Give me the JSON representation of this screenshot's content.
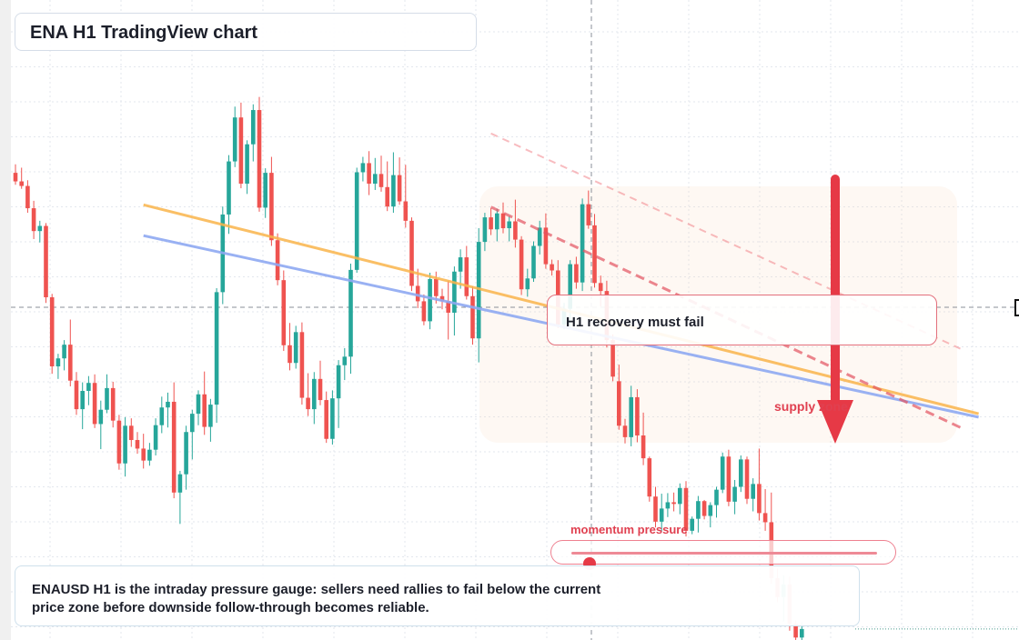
{
  "title": "ENA H1 TradingView chart",
  "callout": "H1 recovery must fail",
  "supply_label": "supply zone",
  "momentum": {
    "label": "momentum pressure",
    "level": 0.06
  },
  "caption": "ENAUSD H1 is the intraday pressure gauge: sellers need rallies to fail below the current price zone before downside follow-through becomes reliable.",
  "colors": {
    "bull": "#26a69a",
    "bear": "#ef5350",
    "orange_line": "#f9b44a",
    "blue_line": "#8ea8f2",
    "accent": "#e63946"
  },
  "chart_data": {
    "type": "candlestick",
    "title": "ENA H1 TradingView chart",
    "xlabel": "",
    "ylabel": "",
    "ylim": [
      0,
      100
    ],
    "grid": true,
    "annotations": [
      "H1 recovery must fail",
      "supply zone",
      "momentum pressure"
    ],
    "arrow": "down",
    "ohlc": [
      [
        79.6,
        81.1,
        77.5,
        78.1
      ],
      [
        78.1,
        80.5,
        76.8,
        77.3
      ],
      [
        77.3,
        78.3,
        72.6,
        73.4
      ],
      [
        73.4,
        74.7,
        68.0,
        69.4
      ],
      [
        69.4,
        71.2,
        67.4,
        70.3
      ],
      [
        70.3,
        70.8,
        56.8,
        57.8
      ],
      [
        57.8,
        58.4,
        44.4,
        45.7
      ],
      [
        45.7,
        47.9,
        43.5,
        47.1
      ],
      [
        47.1,
        50.3,
        45.0,
        49.5
      ],
      [
        49.5,
        53.9,
        42.2,
        43.2
      ],
      [
        43.2,
        44.7,
        37.2,
        38.2
      ],
      [
        38.2,
        42.9,
        34.7,
        41.4
      ],
      [
        41.4,
        44.0,
        38.9,
        42.8
      ],
      [
        42.8,
        44.3,
        34.9,
        35.6
      ],
      [
        35.6,
        39.7,
        31.2,
        38.1
      ],
      [
        38.1,
        44.3,
        37.5,
        41.9
      ],
      [
        41.9,
        43.0,
        35.0,
        36.2
      ],
      [
        36.2,
        37.2,
        27.6,
        28.7
      ],
      [
        28.7,
        36.8,
        26.4,
        35.3
      ],
      [
        35.3,
        36.6,
        31.6,
        32.8
      ],
      [
        32.8,
        34.2,
        30.4,
        31.3
      ],
      [
        31.3,
        33.9,
        27.8,
        29.2
      ],
      [
        29.2,
        32.3,
        28.3,
        31.1
      ],
      [
        31.1,
        36.6,
        30.1,
        35.4
      ],
      [
        35.4,
        40.4,
        34.0,
        38.5
      ],
      [
        38.5,
        41.1,
        35.0,
        39.5
      ],
      [
        39.5,
        42.9,
        22.6,
        23.6
      ],
      [
        23.6,
        27.4,
        18.1,
        26.8
      ],
      [
        26.8,
        35.3,
        24.1,
        34.2
      ],
      [
        34.2,
        38.1,
        29.4,
        37.4
      ],
      [
        37.4,
        41.5,
        35.4,
        40.8
      ],
      [
        40.8,
        44.8,
        33.7,
        35.1
      ],
      [
        35.1,
        40.0,
        32.5,
        39.0
      ],
      [
        39.0,
        59.4,
        35.8,
        58.7
      ],
      [
        58.7,
        73.7,
        56.6,
        72.3
      ],
      [
        72.3,
        82.7,
        68.9,
        81.6
      ],
      [
        81.6,
        91.2,
        80.6,
        89.3
      ],
      [
        89.3,
        91.9,
        76.9,
        77.7
      ],
      [
        77.7,
        85.3,
        75.9,
        84.6
      ],
      [
        84.6,
        91.6,
        81.6,
        90.6
      ],
      [
        90.6,
        92.9,
        72.8,
        73.5
      ],
      [
        73.5,
        80.4,
        71.7,
        79.6
      ],
      [
        79.6,
        82.4,
        66.8,
        67.8
      ],
      [
        67.8,
        69.0,
        59.9,
        60.8
      ],
      [
        60.8,
        62.5,
        48.4,
        49.4
      ],
      [
        49.4,
        53.3,
        45.0,
        46.3
      ],
      [
        46.3,
        52.8,
        45.3,
        51.7
      ],
      [
        51.7,
        53.4,
        39.0,
        40.2
      ],
      [
        40.2,
        44.5,
        37.0,
        38.2
      ],
      [
        38.2,
        44.7,
        35.6,
        43.5
      ],
      [
        43.5,
        46.7,
        38.9,
        39.8
      ],
      [
        39.8,
        41.3,
        32.3,
        33.0
      ],
      [
        33.0,
        41.5,
        32.0,
        40.1
      ],
      [
        40.1,
        46.8,
        34.9,
        45.9
      ],
      [
        45.9,
        48.9,
        43.3,
        47.4
      ],
      [
        47.4,
        63.7,
        44.4,
        62.6
      ],
      [
        62.6,
        80.5,
        62.1,
        79.7
      ],
      [
        79.7,
        82.4,
        78.1,
        81.3
      ],
      [
        81.3,
        83.4,
        75.7,
        77.7
      ],
      [
        77.7,
        82.2,
        76.6,
        79.4
      ],
      [
        79.4,
        82.6,
        76.3,
        77.1
      ],
      [
        77.1,
        81.6,
        72.9,
        73.7
      ],
      [
        73.7,
        83.2,
        72.6,
        79.2
      ],
      [
        79.2,
        82.3,
        74.0,
        74.6
      ],
      [
        74.6,
        81.0,
        70.0,
        71.2
      ],
      [
        71.2,
        71.8,
        58.9,
        59.8
      ],
      [
        59.8,
        62.8,
        55.9,
        57.1
      ],
      [
        57.1,
        58.3,
        52.9,
        53.6
      ],
      [
        53.6,
        62.1,
        52.2,
        61.0
      ],
      [
        61.0,
        62.3,
        56.7,
        58.0
      ],
      [
        58.0,
        59.3,
        55.7,
        57.1
      ],
      [
        57.1,
        60.7,
        50.4,
        55.1
      ],
      [
        55.1,
        63.2,
        51.1,
        62.3
      ],
      [
        62.3,
        66.2,
        59.3,
        64.8
      ],
      [
        64.8,
        66.8,
        57.4,
        58.0
      ],
      [
        58.0,
        59.7,
        49.5,
        50.6
      ],
      [
        50.6,
        69.9,
        46.4,
        67.5
      ],
      [
        67.5,
        72.6,
        65.9,
        71.8
      ],
      [
        71.8,
        73.4,
        68.7,
        69.7
      ],
      [
        69.7,
        73.3,
        67.6,
        72.5
      ],
      [
        72.5,
        74.4,
        69.0,
        69.9
      ],
      [
        69.9,
        72.0,
        67.6,
        71.1
      ],
      [
        71.1,
        74.9,
        66.5,
        67.9
      ],
      [
        67.9,
        68.5,
        58.2,
        59.2
      ],
      [
        59.2,
        62.8,
        57.9,
        61.1
      ],
      [
        61.1,
        67.6,
        60.5,
        66.8
      ],
      [
        66.8,
        71.2,
        65.3,
        70.0
      ],
      [
        70.0,
        72.5,
        62.8,
        63.6
      ],
      [
        63.6,
        64.4,
        61.6,
        62.5
      ],
      [
        62.5,
        64.3,
        52.4,
        53.0
      ],
      [
        53.0,
        56.8,
        52.2,
        55.8
      ],
      [
        55.8,
        64.3,
        52.6,
        63.6
      ],
      [
        63.6,
        64.9,
        59.3,
        60.4
      ],
      [
        60.4,
        75.1,
        58.9,
        74.1
      ],
      [
        74.1,
        76.5,
        69.8,
        70.4
      ],
      [
        70.4,
        72.4,
        59.5,
        60.3
      ],
      [
        60.3,
        61.6,
        56.2,
        58.9
      ],
      [
        58.9,
        60.7,
        49.0,
        50.3
      ],
      [
        50.3,
        51.3,
        43.1,
        43.9
      ],
      [
        43.1,
        46.0,
        34.6,
        35.3
      ],
      [
        35.3,
        36.5,
        32.2,
        33.3
      ],
      [
        33.3,
        42.3,
        31.7,
        40.3
      ],
      [
        40.3,
        41.7,
        32.4,
        33.6
      ],
      [
        33.6,
        37.6,
        28.4,
        29.6
      ],
      [
        29.6,
        29.9,
        22.0,
        22.9
      ],
      [
        22.9,
        24.6,
        17.5,
        18.5
      ],
      [
        18.5,
        23.4,
        16.8,
        20.8
      ],
      [
        20.8,
        23.5,
        19.3,
        21.9
      ],
      [
        21.9,
        23.6,
        20.3,
        21.6
      ],
      [
        21.6,
        25.2,
        19.8,
        24.4
      ],
      [
        24.4,
        25.6,
        15.9,
        16.9
      ],
      [
        16.9,
        19.4,
        16.3,
        19.0
      ],
      [
        19.0,
        23.0,
        16.6,
        22.1
      ],
      [
        22.1,
        22.3,
        18.9,
        19.5
      ],
      [
        19.5,
        21.9,
        17.5,
        21.4
      ],
      [
        21.4,
        24.6,
        19.2,
        24.1
      ],
      [
        24.1,
        30.6,
        23.5,
        29.9
      ],
      [
        29.9,
        31.1,
        21.2,
        22.0
      ],
      [
        22.0,
        25.8,
        19.8,
        24.6
      ],
      [
        24.6,
        30.1,
        23.7,
        29.4
      ],
      [
        29.4,
        29.9,
        21.6,
        22.5
      ],
      [
        22.5,
        26.1,
        20.3,
        25.1
      ],
      [
        25.1,
        31.3,
        18.7,
        20.0
      ],
      [
        20.0,
        24.2,
        16.9,
        18.4
      ],
      [
        18.4,
        23.6,
        7.6,
        8.6
      ],
      [
        8.6,
        10.3,
        4.4,
        5.3
      ],
      [
        5.3,
        9.1,
        1.0,
        7.5
      ],
      [
        7.5,
        8.9,
        -0.6,
        0.6
      ],
      [
        0.6,
        1.2,
        -2.8,
        -1.8
      ],
      [
        -1.8,
        0.9,
        -4.1,
        -0.3
      ]
    ]
  }
}
